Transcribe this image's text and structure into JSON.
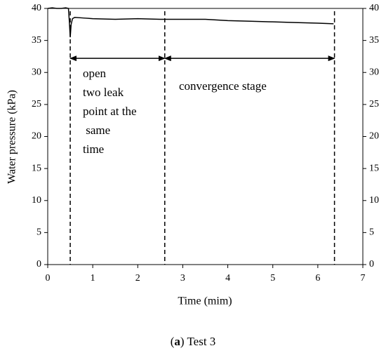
{
  "chart_data": {
    "type": "line",
    "x_label": "Time (mim)",
    "y_label": "Water pressure (kPa)",
    "x": [
      0,
      0.1,
      0.2,
      0.3,
      0.4,
      0.46,
      0.48,
      0.5,
      0.52,
      0.55,
      0.6,
      0.8,
      1,
      1.5,
      2,
      2.5,
      3,
      3.5,
      4,
      4.5,
      5,
      5.5,
      6,
      6.35
    ],
    "series": [
      {
        "color": "#000000",
        "values": [
          40,
          40.1,
          40,
          40,
          40.1,
          40,
          38,
          35.5,
          37.5,
          38.4,
          38.6,
          38.5,
          38.4,
          38.3,
          38.4,
          38.3,
          38.3,
          38.3,
          38.1,
          38.0,
          37.9,
          37.8,
          37.7,
          37.6
        ]
      }
    ],
    "xlim": [
      0,
      7
    ],
    "xticks": [
      0,
      1,
      2,
      3,
      4,
      5,
      6,
      7
    ],
    "ylim": [
      0,
      40
    ],
    "yticks": [
      0,
      5,
      10,
      15,
      20,
      25,
      30,
      35,
      40
    ],
    "vlines": [
      0.5,
      2.6,
      6.37
    ],
    "arrows": [
      {
        "from": 0.5,
        "to": 2.6,
        "y": 32.2
      },
      {
        "from": 2.6,
        "to": 6.37,
        "y": 32.2
      }
    ],
    "annotations": [
      {
        "lines": [
          "open",
          "two leak",
          "point at the",
          " same",
          "time"
        ]
      },
      {
        "lines": [
          "convergence stage"
        ]
      }
    ],
    "caption": [
      "(",
      "a",
      ") Test 3"
    ]
  }
}
